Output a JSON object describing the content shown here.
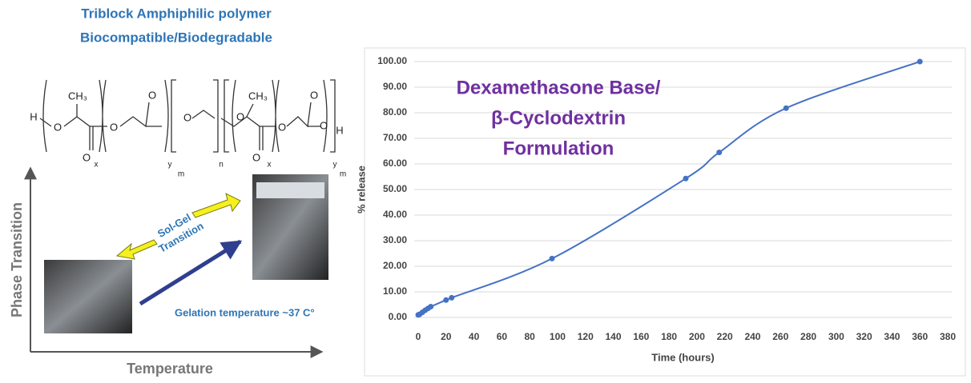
{
  "diagram": {
    "heading": [
      "Triblock Amphiphilic polymer",
      "Biocompatible/Biodegradable"
    ],
    "structure_labels": [
      "H",
      "O",
      "CH₃",
      "O",
      "O",
      "O",
      "O",
      "O",
      "CH₃",
      "O",
      "O",
      "O",
      "O",
      "H",
      "x",
      "y",
      "n",
      "m",
      "x",
      "y",
      "m"
    ],
    "y_axis_label": "Phase Transition",
    "x_axis_label": "Temperature",
    "transition_label": [
      "Sol-Gel",
      "Transition"
    ],
    "gelation_label": "Gelation temperature ~37 C°"
  },
  "chart_data": {
    "type": "line",
    "title": [
      "Dexamethasone Base/",
      "β-Cyclodextrin",
      "Formulation"
    ],
    "x_label": "Time (hours)",
    "y_label": "% release",
    "x": [
      0,
      1,
      3,
      5,
      7,
      9,
      20,
      24,
      96,
      192,
      216,
      264,
      360
    ],
    "values": [
      1,
      1.2,
      2,
      2.8,
      3.5,
      4.2,
      6.8,
      7.7,
      23,
      54.3,
      64.5,
      81.8,
      100
    ],
    "color": "#4472c4",
    "marker": true,
    "grid": true,
    "xlim": [
      0,
      380
    ],
    "xticks": [
      0,
      20,
      40,
      60,
      80,
      100,
      120,
      140,
      160,
      180,
      200,
      220,
      240,
      260,
      280,
      300,
      320,
      340,
      360,
      380
    ],
    "ylim": [
      0,
      100
    ],
    "yticks": [
      {
        "value": 0,
        "label": "0.00"
      },
      {
        "value": 10,
        "label": "10.00"
      },
      {
        "value": 20,
        "label": "20.00"
      },
      {
        "value": 30,
        "label": "30.00"
      },
      {
        "value": 40,
        "label": "40.00"
      },
      {
        "value": 50,
        "label": "50.00"
      },
      {
        "value": 60,
        "label": "60.00"
      },
      {
        "value": 70,
        "label": "70.00"
      },
      {
        "value": 80,
        "label": "80.00"
      },
      {
        "value": 90,
        "label": "90.00"
      },
      {
        "value": 100,
        "label": "100.00"
      }
    ]
  }
}
